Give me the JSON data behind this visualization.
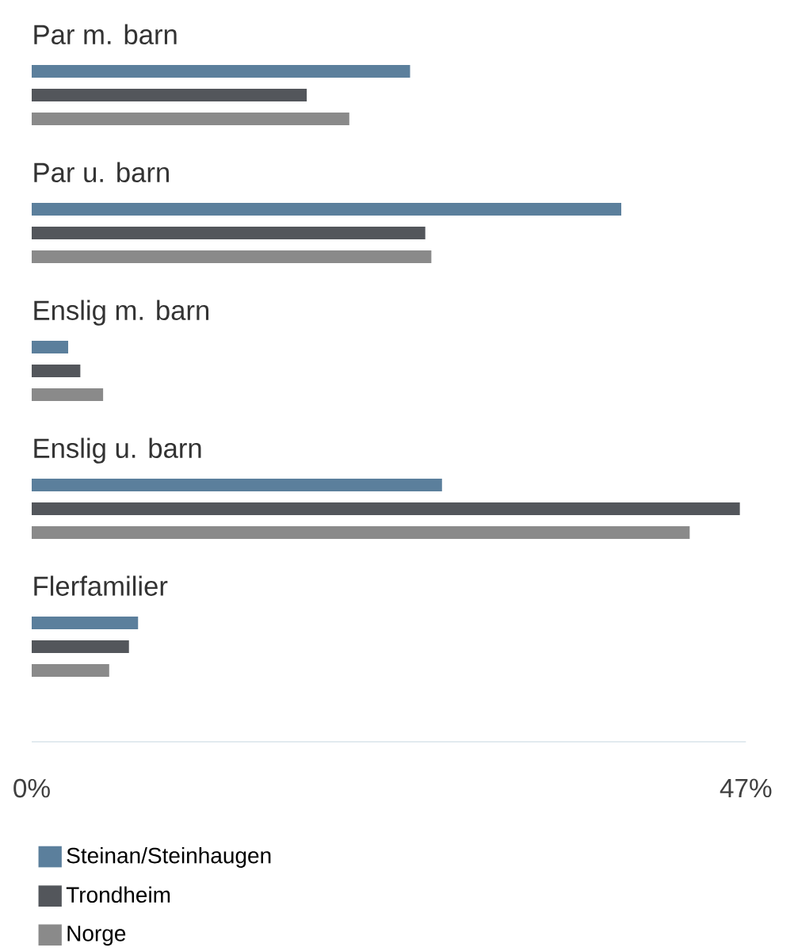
{
  "chart_data": {
    "type": "bar",
    "orientation": "horizontal",
    "categories": [
      "Par m. barn",
      "Par u. barn",
      "Enslig m. barn",
      "Enslig u. barn",
      "Flerfamilier"
    ],
    "series": [
      {
        "name": "Steinan/Steinhaugen",
        "color": "#5b7f9c",
        "values": [
          24.9,
          38.8,
          2.4,
          27.0,
          7.0
        ]
      },
      {
        "name": "Trondheim",
        "color": "#53565b",
        "values": [
          18.1,
          25.9,
          3.2,
          46.6,
          6.4
        ]
      },
      {
        "name": "Norge",
        "color": "#8a8a8a",
        "values": [
          20.9,
          26.3,
          4.7,
          43.3,
          5.1
        ]
      }
    ],
    "xlim": [
      0,
      47
    ],
    "xticks": [
      {
        "value": 0,
        "label": "0%"
      },
      {
        "value": 47,
        "label": "47%"
      }
    ],
    "legend": "bottom",
    "grid": false
  }
}
